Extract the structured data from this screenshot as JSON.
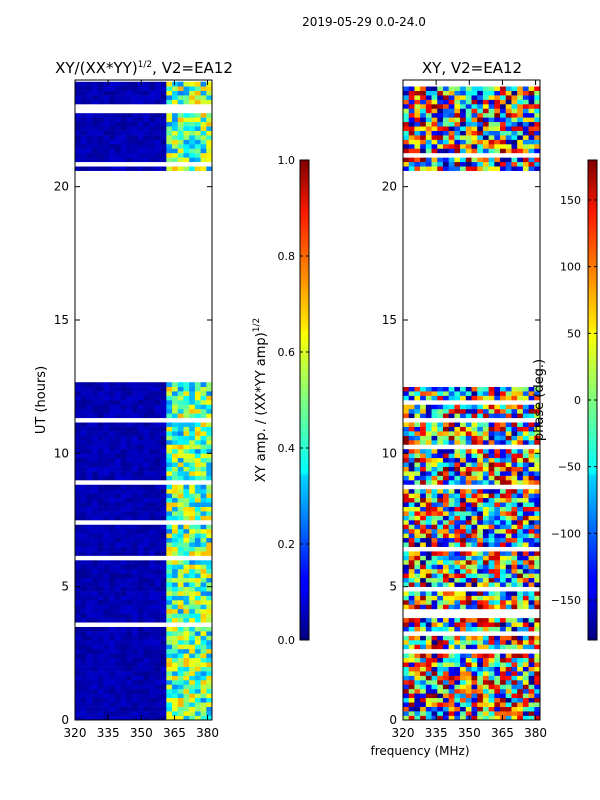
{
  "chart_data": {
    "type": "heatmap",
    "suptitle": "2019-05-29 0.0-24.0",
    "shared_xlabel": "frequency (MHz)",
    "panels": [
      {
        "id": "left",
        "title": "XY/(XX*YY)",
        "title_sup": "1/2",
        "title_suffix": ", V2=EA12",
        "ylabel": "UT (hours)",
        "xlim": [
          320,
          382
        ],
        "ylim": [
          0,
          24
        ],
        "xticks": [
          320,
          335,
          350,
          365,
          380
        ],
        "yticks": [
          0,
          5,
          10,
          15,
          20
        ],
        "no_data_ut_range": [
          12.6,
          20.6
        ],
        "data_ut_blocks": [
          [
            0,
            12.6
          ],
          [
            20.6,
            24
          ]
        ],
        "bright_band_mhz": [
          362,
          381
        ],
        "value_range": [
          0.0,
          1.0
        ],
        "colorbar": {
          "label": "XY amp. / (XX*YY amp)",
          "label_sup": "1/2",
          "ticks": [
            "0.0",
            "0.2",
            "0.4",
            "0.6",
            "0.8",
            "1.0"
          ],
          "tick_values": [
            0.0,
            0.2,
            0.4,
            0.6,
            0.8,
            1.0
          ],
          "range": [
            0.0,
            1.0
          ]
        }
      },
      {
        "id": "right",
        "title": "XY, V2=EA12",
        "xlim": [
          320,
          382
        ],
        "ylim": [
          0,
          24
        ],
        "xticks": [
          320,
          335,
          350,
          365,
          380
        ],
        "yticks": [
          0,
          5,
          10,
          15,
          20
        ],
        "no_data_ut_range": [
          12.6,
          20.6
        ],
        "data_ut_blocks": [
          [
            0,
            12.6
          ],
          [
            20.6,
            24
          ]
        ],
        "value_range": [
          -180,
          180
        ],
        "colorbar": {
          "label": "phase (deg.)",
          "ticks": [
            "−150",
            "−100",
            "−50",
            "0",
            "50",
            "100",
            "150"
          ],
          "tick_values": [
            -150,
            -100,
            -50,
            0,
            50,
            100,
            150
          ],
          "range": [
            -180,
            180
          ]
        }
      }
    ]
  }
}
